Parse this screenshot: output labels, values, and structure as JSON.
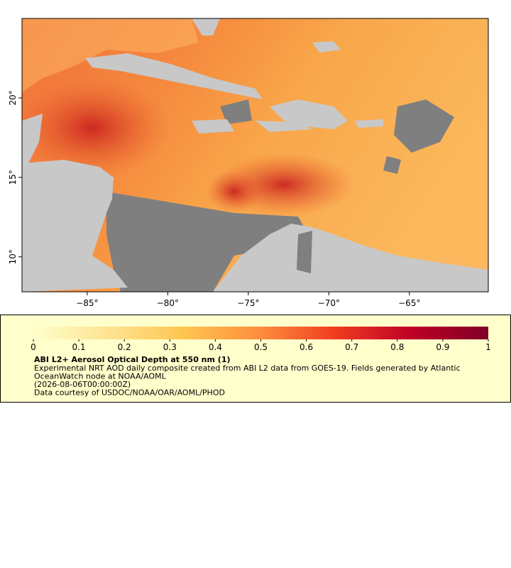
{
  "map": {
    "xlim": [
      -89.05,
      -60.1
    ],
    "ylim": [
      7.8,
      25.0
    ],
    "xticks": [
      {
        "value": -85,
        "label": "−85°"
      },
      {
        "value": -80,
        "label": "−80°"
      },
      {
        "value": -75,
        "label": "−75°"
      },
      {
        "value": -70,
        "label": "−70°"
      },
      {
        "value": -65,
        "label": "−65°"
      }
    ],
    "yticks": [
      {
        "value": 10,
        "label": "10°"
      },
      {
        "value": 15,
        "label": "15°"
      },
      {
        "value": 20,
        "label": "20°"
      }
    ]
  },
  "colorbar": {
    "range": [
      0,
      1
    ],
    "ticks": [
      0,
      0.1,
      0.2,
      0.3,
      0.4,
      0.5,
      0.6,
      0.7,
      0.8,
      0.9,
      1
    ],
    "colors": [
      "#ffffcc",
      "#fee391",
      "#fec44f",
      "#fd8d3c",
      "#f03b20",
      "#bd0026",
      "#800026"
    ]
  },
  "legend": {
    "title": "ABI L2+ Aerosol Optical Depth at 550 nm (1)",
    "lines": [
      "Experimental NRT AOD daily composite created from ABI L2 data from GOES-19. Fields generated by Atlantic",
      "OceanWatch node at NOAA/AOML",
      "(2026-08-06T00:00:00Z)",
      "Data courtesy of USDOC/NOAA/OAR/AOML/PHOD"
    ]
  }
}
